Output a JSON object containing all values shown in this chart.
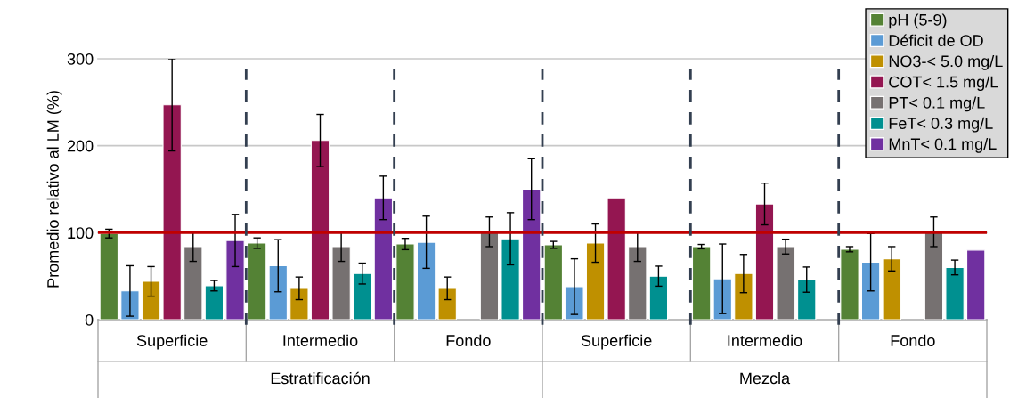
{
  "chart_data": {
    "type": "bar",
    "ylabel": "Promedio relativo al LM (%)",
    "categories": [
      "Superficie",
      "Intermedio",
      "Fondo",
      "Superficie",
      "Intermedio",
      "Fondo"
    ],
    "series": [
      {
        "name": "pH (5-9)",
        "color": "#548235",
        "values": [
          99,
          88,
          87,
          86,
          84,
          81
        ],
        "errors": [
          5,
          6,
          6.5,
          4,
          2.5,
          3
        ]
      },
      {
        "name": "Déficit de OD",
        "color": "#5b9bd5",
        "values": [
          33,
          62,
          89,
          38,
          47,
          66
        ],
        "errors": [
          29,
          30,
          30,
          32,
          40,
          33
        ]
      },
      {
        "name": "NO3-< 5.0 mg/L",
        "color": "#bf9000",
        "values": [
          44,
          36,
          36,
          88,
          53,
          70
        ],
        "errors": [
          17,
          13,
          13,
          22,
          22,
          14
        ]
      },
      {
        "name": "COT< 1.5 mg/L",
        "color": "#941651",
        "values": [
          247,
          206,
          null,
          140,
          133,
          null
        ],
        "errors": [
          53,
          30,
          null,
          null,
          24,
          null
        ]
      },
      {
        "name": "PT< 0.1 mg/L",
        "color": "#767171",
        "values": [
          84,
          84,
          101,
          84,
          84,
          101
        ],
        "errors": [
          17,
          17,
          17,
          17,
          8.5,
          17
        ]
      },
      {
        "name": "FeT< 0.3 mg/L",
        "color": "#009090",
        "values": [
          39,
          53,
          93,
          50,
          46,
          60
        ],
        "errors": [
          6,
          12,
          30,
          11.5,
          14.5,
          8.5
        ]
      },
      {
        "name": "MnT< 0.1 mg/L",
        "color": "#7030a0",
        "values": [
          91,
          140,
          150,
          null,
          null,
          80
        ],
        "errors": [
          30,
          25,
          35,
          null,
          null,
          null
        ]
      }
    ],
    "ylim": [
      0,
      300
    ],
    "yticks": [
      0,
      100,
      200,
      300
    ],
    "grid": "y",
    "legend": "top right",
    "ref_lines": [
      {
        "axis": "y",
        "value": 100,
        "color": "#c00000",
        "line_style": "solid"
      }
    ],
    "annotations": [
      "Estratificación",
      "Mezcla"
    ]
  }
}
